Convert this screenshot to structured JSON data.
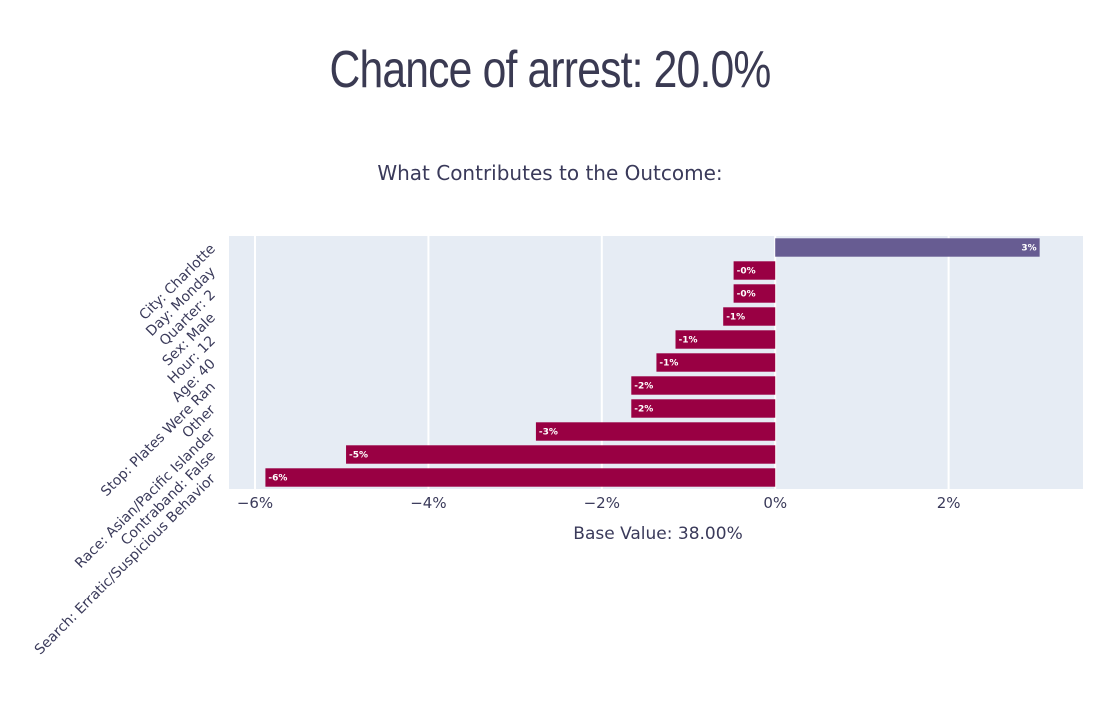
{
  "header": {
    "title": "Chance of arrest: 20.0%"
  },
  "chart_data": {
    "type": "bar",
    "orientation": "horizontal",
    "title": "What Contributes to the Outcome:",
    "xlabel": "Base Value: 38.00%",
    "ylabel": "",
    "xlim": [
      -6.3,
      3.55
    ],
    "xticks": [
      {
        "value": -6,
        "label": "−6%"
      },
      {
        "value": -4,
        "label": "−4%"
      },
      {
        "value": -2,
        "label": "−2%"
      },
      {
        "value": 0,
        "label": "0%"
      },
      {
        "value": 2,
        "label": "2%"
      }
    ],
    "grid": true,
    "legend": "none",
    "colors": {
      "positive": "#675c92",
      "negative": "#990043",
      "plot_bg": "#e6ecf4",
      "grid": "#ffffff"
    },
    "bars": [
      {
        "category": "City: Charlotte",
        "value": 3.05,
        "label": "3%"
      },
      {
        "category": "Day: Monday",
        "value": -0.48,
        "label": "-0%"
      },
      {
        "category": "Quarter: 2",
        "value": -0.48,
        "label": "-0%"
      },
      {
        "category": "Sex: Male",
        "value": -0.6,
        "label": "-1%"
      },
      {
        "category": "Hour: 12",
        "value": -1.15,
        "label": "-1%"
      },
      {
        "category": "Age: 40",
        "value": -1.37,
        "label": "-1%"
      },
      {
        "category": "Stop: Plates Were Ran",
        "value": -1.66,
        "label": "-2%"
      },
      {
        "category": "Other",
        "value": -1.66,
        "label": "-2%"
      },
      {
        "category": "Race: Asian/Pacific Islander",
        "value": -2.76,
        "label": "-3%"
      },
      {
        "category": "Contraband: False",
        "value": -4.95,
        "label": "-5%"
      },
      {
        "category": "Search: Erratic/Suspicious Behavior",
        "value": -5.88,
        "label": "-6%"
      }
    ]
  }
}
